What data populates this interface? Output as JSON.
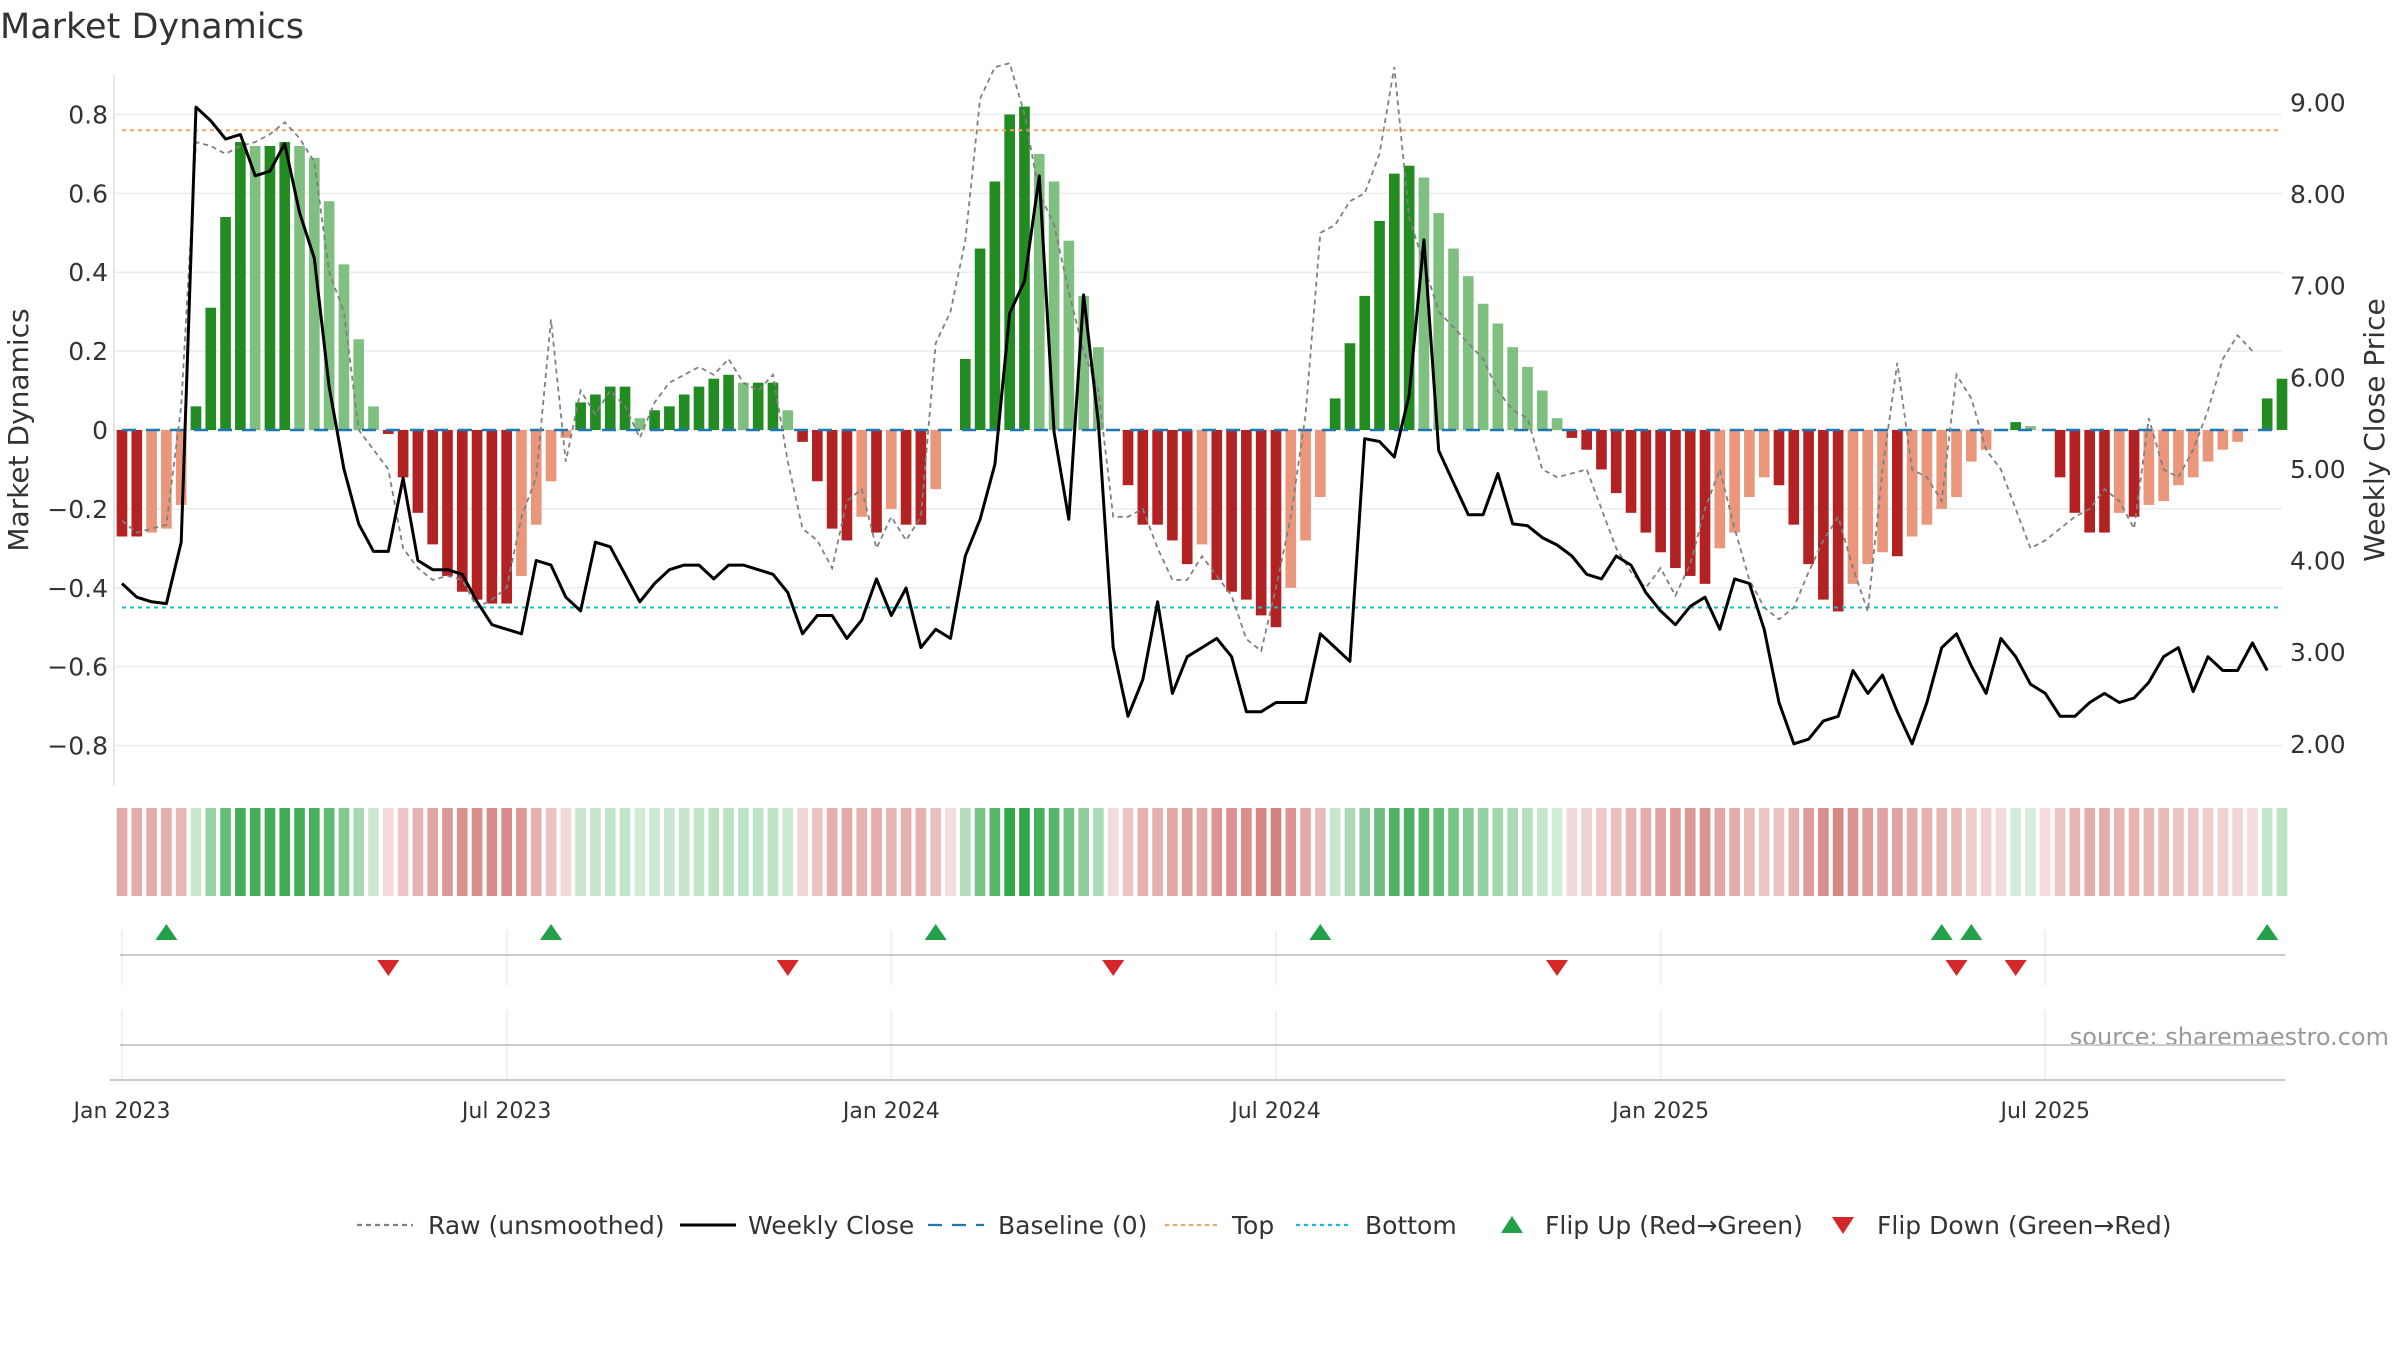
{
  "chart_data": {
    "type": "bar",
    "title": "Market Dynamics",
    "ylabel_left": "Market Dynamics",
    "ylabel_right": "Weekly Close Price",
    "source": "source: sharemaestro.com",
    "y_left_range": [
      -0.9,
      0.9
    ],
    "y_right_range": [
      1.55,
      9.3
    ],
    "y_left_ticks": [
      {
        "v": 0.8,
        "label": "0.8"
      },
      {
        "v": 0.6,
        "label": "0.6"
      },
      {
        "v": 0.4,
        "label": "0.4"
      },
      {
        "v": 0.2,
        "label": "0.2"
      },
      {
        "v": 0.0,
        "label": "0"
      },
      {
        "v": -0.2,
        "label": "−0.2"
      },
      {
        "v": -0.4,
        "label": "−0.4"
      },
      {
        "v": -0.6,
        "label": "−0.6"
      },
      {
        "v": -0.8,
        "label": "−0.8"
      }
    ],
    "y_right_ticks": [
      {
        "v": 9.0,
        "label": "9.00"
      },
      {
        "v": 8.0,
        "label": "8.00"
      },
      {
        "v": 7.0,
        "label": "7.00"
      },
      {
        "v": 6.0,
        "label": "6.00"
      },
      {
        "v": 5.0,
        "label": "5.00"
      },
      {
        "v": 4.0,
        "label": "4.00"
      },
      {
        "v": 3.0,
        "label": "3.00"
      },
      {
        "v": 2.0,
        "label": "2.00"
      }
    ],
    "x_ticks": [
      {
        "week": 1,
        "label": "Jan 2023"
      },
      {
        "week": 27,
        "label": "Jul 2023"
      },
      {
        "week": 53,
        "label": "Jan 2024"
      },
      {
        "week": 79,
        "label": "Jul 2024"
      },
      {
        "week": 105,
        "label": "Jan 2025"
      },
      {
        "week": 131,
        "label": "Jul 2025"
      }
    ],
    "thresholds": {
      "top": 0.76,
      "bottom": -0.45,
      "baseline": 0
    },
    "colors": {
      "strong_green": "#228b22",
      "light_green": "#7fbf7f",
      "strong_red": "#b22222",
      "light_red": "#e9967a",
      "raw": "#808080",
      "close": "#000000",
      "baseline": "#1f77b4",
      "top": "#f4a460",
      "bottom": "#17becf",
      "flip_up": "#22a04a",
      "flip_down": "#d62728"
    },
    "flip_up_weeks": [
      4,
      30,
      56,
      82,
      124,
      126,
      146
    ],
    "flip_down_weeks": [
      19,
      46,
      68,
      98,
      125,
      129
    ],
    "series": [
      {
        "name": "Market Dynamics",
        "values": [
          -0.27,
          -0.27,
          -0.26,
          -0.25,
          -0.19,
          0.06,
          0.31,
          0.54,
          0.73,
          0.72,
          0.72,
          0.73,
          0.72,
          0.69,
          0.58,
          0.42,
          0.23,
          0.06,
          -0.01,
          -0.12,
          -0.21,
          -0.29,
          -0.37,
          -0.41,
          -0.43,
          -0.44,
          -0.44,
          -0.37,
          -0.24,
          -0.13,
          -0.02,
          0.07,
          0.09,
          0.11,
          0.11,
          0.03,
          0.05,
          0.06,
          0.09,
          0.11,
          0.13,
          0.14,
          0.12,
          0.12,
          0.12,
          0.05,
          -0.03,
          -0.13,
          -0.25,
          -0.28,
          -0.22,
          -0.26,
          -0.2,
          -0.24,
          -0.24,
          -0.15,
          0.0,
          0.18,
          0.46,
          0.63,
          0.8,
          0.82,
          0.7,
          0.63,
          0.48,
          0.34,
          0.21,
          0.0,
          -0.14,
          -0.24,
          -0.24,
          -0.28,
          -0.34,
          -0.29,
          -0.38,
          -0.41,
          -0.43,
          -0.47,
          -0.5,
          -0.4,
          -0.28,
          -0.17,
          0.08,
          0.22,
          0.34,
          0.53,
          0.65,
          0.67,
          0.64,
          0.55,
          0.46,
          0.39,
          0.32,
          0.27,
          0.21,
          0.16,
          0.1,
          0.03,
          -0.02,
          -0.05,
          -0.1,
          -0.16,
          -0.21,
          -0.26,
          -0.31,
          -0.35,
          -0.37,
          -0.39,
          -0.3,
          -0.26,
          -0.17,
          -0.12,
          -0.14,
          -0.24,
          -0.34,
          -0.43,
          -0.46,
          -0.39,
          -0.34,
          -0.31,
          -0.32,
          -0.27,
          -0.24,
          -0.2,
          -0.17,
          -0.08,
          -0.05,
          0.0,
          0.02,
          0.01,
          0.0,
          -0.12,
          -0.21,
          -0.26,
          -0.26,
          -0.21,
          -0.22,
          -0.19,
          -0.18,
          -0.14,
          -0.12,
          -0.08,
          -0.05,
          -0.03,
          0.0,
          0.08,
          0.13
        ]
      },
      {
        "name": "Raw (unsmoothed)",
        "values": [
          -0.23,
          -0.26,
          -0.25,
          -0.24,
          0.06,
          0.73,
          0.72,
          0.7,
          0.72,
          0.73,
          0.75,
          0.78,
          0.74,
          0.68,
          0.4,
          0.3,
          0.0,
          -0.05,
          -0.1,
          -0.3,
          -0.35,
          -0.38,
          -0.37,
          -0.38,
          -0.45,
          -0.43,
          -0.4,
          -0.22,
          -0.12,
          0.28,
          -0.08,
          0.1,
          0.04,
          0.1,
          0.06,
          -0.02,
          0.07,
          0.12,
          0.14,
          0.16,
          0.14,
          0.18,
          0.12,
          0.1,
          0.14,
          -0.08,
          -0.25,
          -0.28,
          -0.35,
          -0.18,
          -0.15,
          -0.3,
          -0.22,
          -0.28,
          -0.22,
          0.22,
          0.3,
          0.48,
          0.84,
          0.92,
          0.93,
          0.8,
          0.6,
          0.52,
          0.35,
          0.2,
          0.1,
          -0.22,
          -0.22,
          -0.2,
          -0.3,
          -0.38,
          -0.38,
          -0.32,
          -0.37,
          -0.42,
          -0.53,
          -0.56,
          -0.4,
          -0.22,
          0.04,
          0.5,
          0.52,
          0.58,
          0.6,
          0.7,
          0.92,
          0.54,
          0.42,
          0.3,
          0.26,
          0.22,
          0.18,
          0.1,
          0.05,
          0.03,
          -0.1,
          -0.12,
          -0.11,
          -0.1,
          -0.2,
          -0.3,
          -0.36,
          -0.4,
          -0.35,
          -0.42,
          -0.34,
          -0.2,
          -0.1,
          -0.25,
          -0.38,
          -0.45,
          -0.48,
          -0.45,
          -0.36,
          -0.28,
          -0.22,
          -0.35,
          -0.46,
          -0.1,
          0.17,
          -0.1,
          -0.12,
          -0.18,
          0.14,
          0.08,
          -0.05,
          -0.1,
          -0.2,
          -0.3,
          -0.28,
          -0.25,
          -0.22,
          -0.2,
          -0.15,
          -0.18,
          -0.25,
          0.03,
          -0.1,
          -0.12,
          -0.05,
          0.05,
          0.18,
          0.24,
          0.2
        ]
      },
      {
        "name": "Weekly Close",
        "values": [
          3.75,
          3.6,
          3.55,
          3.53,
          4.2,
          8.95,
          8.8,
          8.6,
          8.65,
          8.2,
          8.25,
          8.55,
          7.8,
          7.3,
          5.9,
          5.0,
          4.4,
          4.1,
          4.1,
          4.9,
          4.0,
          3.9,
          3.9,
          3.85,
          3.55,
          3.3,
          3.25,
          3.2,
          4.0,
          3.95,
          3.6,
          3.45,
          4.2,
          4.15,
          3.85,
          3.55,
          3.75,
          3.9,
          3.95,
          3.95,
          3.8,
          3.95,
          3.95,
          3.9,
          3.85,
          3.65,
          3.2,
          3.4,
          3.4,
          3.15,
          3.35,
          3.8,
          3.4,
          3.7,
          3.05,
          3.25,
          3.15,
          4.05,
          4.45,
          5.05,
          6.7,
          7.05,
          8.2,
          5.4,
          4.45,
          6.9,
          5.5,
          3.05,
          2.3,
          2.7,
          3.55,
          2.55,
          2.95,
          3.05,
          3.15,
          2.95,
          2.35,
          2.35,
          2.45,
          2.45,
          2.45,
          3.2,
          3.05,
          2.9,
          5.33,
          5.3,
          5.13,
          5.8,
          7.5,
          5.2,
          4.85,
          4.5,
          4.5,
          4.95,
          4.4,
          4.38,
          4.25,
          4.17,
          4.05,
          3.85,
          3.8,
          4.05,
          3.95,
          3.65,
          3.45,
          3.3,
          3.5,
          3.6,
          3.25,
          3.8,
          3.75,
          3.25,
          2.45,
          2.0,
          2.05,
          2.25,
          2.3,
          2.8,
          2.55,
          2.75,
          2.35,
          2.0,
          2.45,
          3.05,
          3.2,
          2.85,
          2.55,
          3.15,
          2.95,
          2.65,
          2.55,
          2.3,
          2.3,
          2.45,
          2.55,
          2.45,
          2.5,
          2.67,
          2.95,
          3.05,
          2.57,
          2.95,
          2.8,
          2.8,
          3.1,
          2.8
        ]
      }
    ],
    "legend": [
      {
        "label": "Raw (unsmoothed)",
        "kind": "dashed",
        "color": "#808080"
      },
      {
        "label": "Weekly Close",
        "kind": "solid",
        "color": "#000000"
      },
      {
        "label": "Baseline (0)",
        "kind": "longdash",
        "color": "#1f77b4"
      },
      {
        "label": "Top",
        "kind": "dotted",
        "color": "#f4a460"
      },
      {
        "label": "Bottom",
        "kind": "dotted",
        "color": "#17becf"
      },
      {
        "label": "Flip Up (Red→Green)",
        "kind": "tri-up",
        "color": "#22a04a"
      },
      {
        "label": "Flip Down (Green→Red)",
        "kind": "tri-down",
        "color": "#d62728"
      }
    ]
  }
}
